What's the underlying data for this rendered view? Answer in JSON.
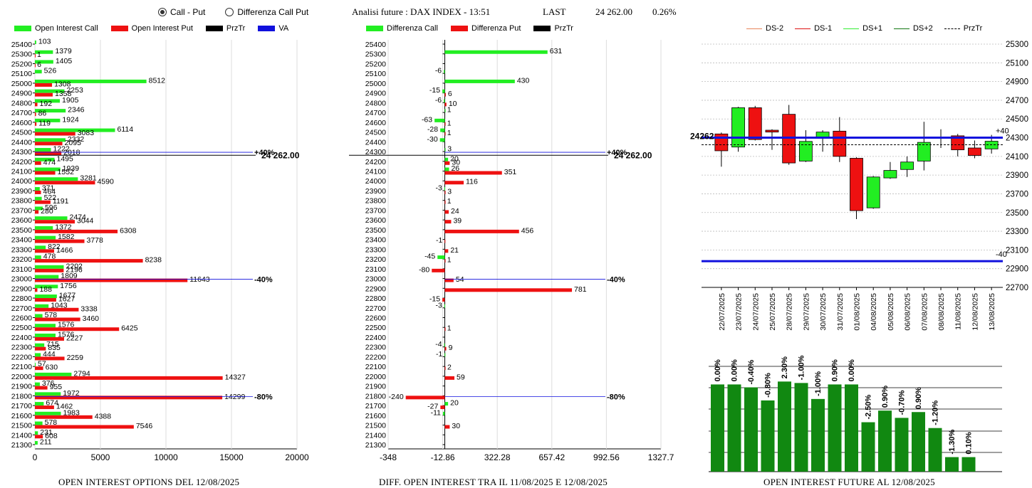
{
  "header": {
    "radio_call_put": "Call - Put",
    "radio_diff": "Differenza Call Put",
    "title": "Analisi future : DAX INDEX - 13:51",
    "last_label": "LAST",
    "last_value": "24 262.00",
    "change": "0.26%"
  },
  "colors": {
    "green": "#22ee22",
    "red": "#ee1111",
    "black": "#000000",
    "blue": "#1010dd",
    "darkgreen": "#118811"
  },
  "legend1": [
    {
      "label": "Open Interest Call",
      "color": "#22ee22"
    },
    {
      "label": "Open Interest Put",
      "color": "#ee1111"
    },
    {
      "label": "PrzTr",
      "color": "#000000"
    },
    {
      "label": "VA",
      "color": "#1010dd"
    }
  ],
  "legend2": [
    {
      "label": "Differenza Call",
      "color": "#22ee22"
    },
    {
      "label": "Differenza Put",
      "color": "#ee1111"
    },
    {
      "label": "PrzTr",
      "color": "#000000"
    }
  ],
  "legend3": [
    {
      "label": "DS-2",
      "color": "#e8855a",
      "dash": false
    },
    {
      "label": "DS-1",
      "color": "#dd1111",
      "dash": false
    },
    {
      "label": "DS+1",
      "color": "#33ee33",
      "dash": false
    },
    {
      "label": "DS+2",
      "color": "#117711",
      "dash": false
    },
    {
      "label": "PrzTr",
      "color": "#000000",
      "dash": true
    }
  ],
  "captions": {
    "c1": "OPEN INTEREST OPTIONS DEL 12/08/2025",
    "c2": "DIFF. OPEN INTEREST TRA IL 11/08/2025 E 12/08/2025",
    "c3": "OPEN INTEREST FUTURE AL 12/08/2025"
  },
  "chart_data": [
    {
      "type": "bar",
      "orientation": "horizontal",
      "strikes": [
        25400,
        25300,
        25200,
        25100,
        25000,
        24900,
        24800,
        24700,
        24600,
        24500,
        24400,
        24300,
        24200,
        24100,
        24000,
        23900,
        23800,
        23700,
        23600,
        23500,
        23400,
        23300,
        23200,
        23100,
        23000,
        22900,
        22800,
        22700,
        22600,
        22500,
        22400,
        22300,
        22200,
        22100,
        22000,
        21900,
        21800,
        21700,
        21600,
        21500,
        21400,
        21300
      ],
      "series": [
        {
          "name": "Open Interest Call",
          "values": [
            103,
            1379,
            1405,
            526,
            8512,
            2253,
            1905,
            2346,
            1924,
            6114,
            2332,
            1222,
            1495,
            1939,
            3281,
            371,
            522,
            596,
            2474,
            1372,
            1582,
            822,
            478,
            2202,
            1809,
            1756,
            1677,
            1043,
            578,
            1576,
            1576,
            715,
            444,
            57,
            2794,
            376,
            1972,
            674,
            1983,
            578,
            231,
            211
          ]
        },
        {
          "name": "Open Interest Put",
          "values": [
            null,
            1,
            6,
            null,
            1308,
            1358,
            192,
            86,
            119,
            3083,
            2095,
            2018,
            474,
            1552,
            4590,
            464,
            1191,
            280,
            3044,
            6308,
            3778,
            1466,
            8238,
            2196,
            11643,
            188,
            1627,
            3338,
            3460,
            6425,
            2227,
            835,
            2259,
            630,
            14327,
            955,
            14299,
            1462,
            4388,
            7546,
            608,
            null
          ]
        }
      ],
      "x_ticks": [
        0,
        5000,
        10000,
        15000,
        20000
      ],
      "xlim": [
        0,
        20000
      ],
      "price_label": "24 262.00",
      "va_lines": [
        {
          "strike": 24300,
          "label": "+40%"
        },
        {
          "strike": 23000,
          "label": "-40%"
        },
        {
          "strike": 21800,
          "label": "-80%"
        }
      ]
    },
    {
      "type": "bar",
      "orientation": "horizontal",
      "strikes": [
        25400,
        25300,
        25200,
        25100,
        25000,
        24900,
        24800,
        24700,
        24600,
        24500,
        24400,
        24300,
        24200,
        24100,
        24000,
        23900,
        23800,
        23700,
        23600,
        23500,
        23400,
        23300,
        23200,
        23100,
        23000,
        22900,
        22800,
        22700,
        22600,
        22500,
        22400,
        22300,
        22200,
        22100,
        22000,
        21900,
        21800,
        21700,
        21600,
        21500,
        21400,
        21300
      ],
      "series": [
        {
          "name": "Differenza Call",
          "values": [
            null,
            631,
            null,
            -6,
            430,
            -15,
            -6,
            1,
            -63,
            -28,
            -30,
            3,
            20,
            26,
            null,
            -3,
            null,
            null,
            null,
            null,
            null,
            null,
            -45,
            null,
            null,
            null,
            null,
            -3,
            null,
            null,
            null,
            -4,
            -1,
            null,
            null,
            null,
            null,
            20,
            -11,
            null,
            null,
            null
          ]
        },
        {
          "name": "Differenza Put",
          "values": [
            null,
            null,
            null,
            null,
            null,
            6,
            10,
            null,
            1,
            1,
            null,
            null,
            30,
            351,
            116,
            3,
            1,
            24,
            39,
            456,
            -1,
            21,
            1,
            -80,
            54,
            781,
            -15,
            null,
            null,
            1,
            null,
            9,
            null,
            2,
            59,
            null,
            -240,
            -27,
            null,
            30,
            null,
            null
          ]
        }
      ],
      "x_ticks": [
        -348,
        -12.86,
        322.28,
        657.42,
        992.56,
        1327.7
      ],
      "xlim": [
        -348,
        1327.7
      ],
      "price_label": "24 262.00",
      "va_lines": [
        {
          "strike": 24300,
          "label": "+40%"
        },
        {
          "strike": 23000,
          "label": "-40%"
        },
        {
          "strike": 21800,
          "label": "-80%"
        }
      ]
    },
    {
      "type": "candlestick",
      "dates": [
        "22/07/2025",
        "23/07/2025",
        "24/07/2025",
        "25/07/2025",
        "28/07/2025",
        "29/07/2025",
        "30/07/2025",
        "31/07/2025",
        "01/08/2025",
        "04/08/2025",
        "05/08/2025",
        "06/08/2025",
        "07/08/2025",
        "08/08/2025",
        "11/08/2025",
        "12/08/2025",
        "13/08/2025"
      ],
      "ohlc": [
        [
          24340,
          24355,
          23990,
          24160
        ],
        [
          24200,
          24630,
          24150,
          24620
        ],
        [
          24620,
          24640,
          24270,
          24280
        ],
        [
          24380,
          24390,
          24170,
          24360
        ],
        [
          24550,
          24650,
          24010,
          24030
        ],
        [
          24050,
          24380,
          24040,
          24260
        ],
        [
          24300,
          24380,
          24150,
          24360
        ],
        [
          24370,
          24520,
          24040,
          24100
        ],
        [
          24080,
          24090,
          23430,
          23520
        ],
        [
          23550,
          23890,
          23540,
          23880
        ],
        [
          23870,
          24040,
          23860,
          23950
        ],
        [
          23960,
          24100,
          23880,
          24040
        ],
        [
          24050,
          24470,
          23950,
          24250
        ],
        [
          24300,
          24390,
          24190,
          24300
        ],
        [
          24320,
          24340,
          24100,
          24170
        ],
        [
          24190,
          24270,
          24080,
          24110
        ],
        [
          24180,
          24330,
          24130,
          24262
        ]
      ],
      "y_ticks": [
        25300,
        25100,
        24900,
        24700,
        24500,
        24300,
        24100,
        23900,
        23700,
        23500,
        23300,
        23100,
        22900,
        22700
      ],
      "ylim": [
        22700,
        25300
      ],
      "price_label": "24262",
      "prz_tr": 24262,
      "lines": [
        {
          "value": 24300,
          "label": "+40"
        },
        {
          "value": 22980,
          "label": "-40"
        }
      ]
    },
    {
      "type": "bar",
      "labels": [
        "0.00%",
        "0.00%",
        "-0.40%",
        "-0.80%",
        "2.30%",
        "-1.00%",
        "-1.00%",
        "0.90%",
        "0.00%",
        "-2.50%",
        "0.90%",
        "-0.70%",
        "0.90%",
        "-1.20%",
        "-1.30%",
        "0.10%"
      ],
      "values": [
        6.0,
        6.0,
        5.8,
        4.9,
        6.2,
        6.1,
        5.0,
        6.0,
        6.0,
        3.4,
        4.2,
        3.7,
        4.1,
        3.0,
        1.0,
        1.0
      ]
    }
  ]
}
